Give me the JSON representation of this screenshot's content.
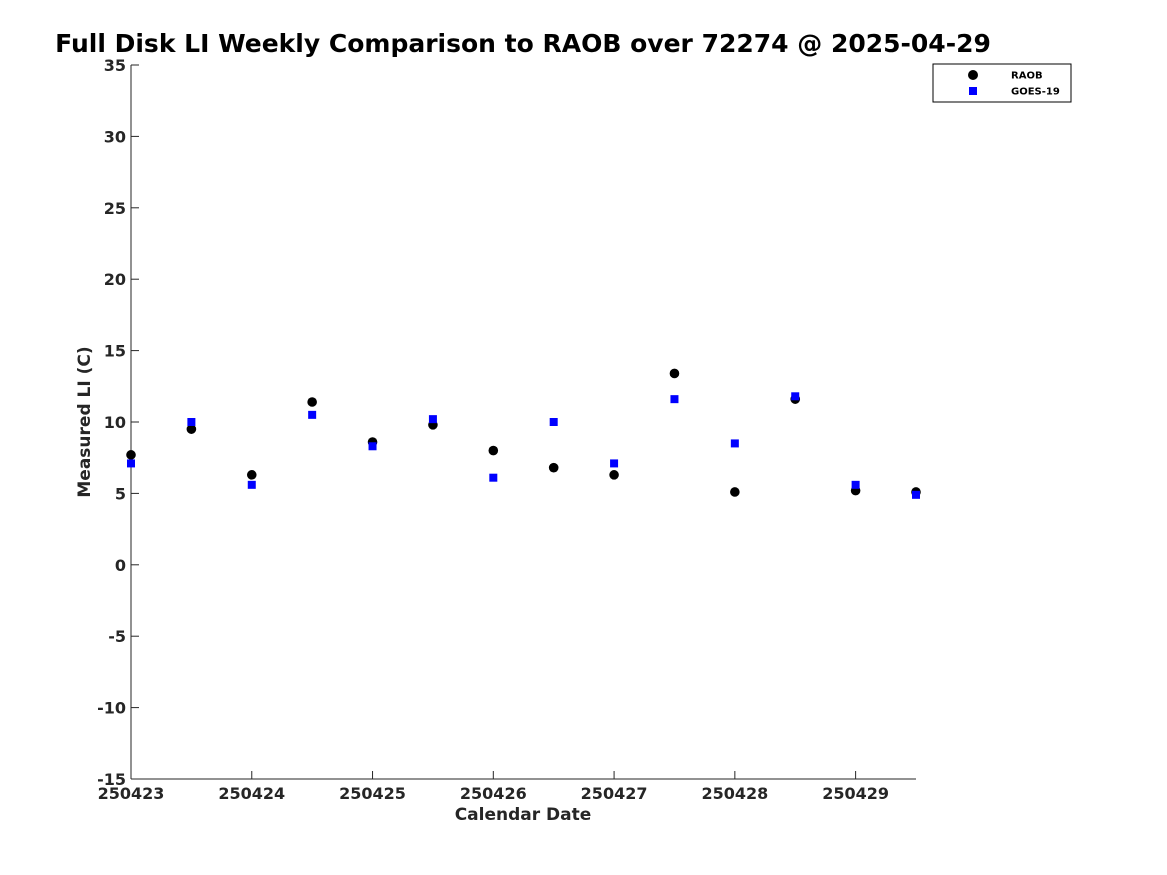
{
  "chart_data": {
    "type": "scatter",
    "title": "Full Disk LI Weekly Comparison to RAOB over 72274 @ 2025-04-29",
    "xlabel": "Calendar Date",
    "ylabel": "Measured LI (C)",
    "xlim": [
      0,
      6.5
    ],
    "ylim": [
      -15,
      35
    ],
    "x_ticks": [
      0,
      1,
      2,
      3,
      4,
      5,
      6
    ],
    "x_tick_labels": [
      "250423",
      "250424",
      "250425",
      "250426",
      "250427",
      "250428",
      "250429"
    ],
    "y_ticks": [
      -15,
      -10,
      -5,
      0,
      5,
      10,
      15,
      20,
      25,
      30,
      35
    ],
    "y_tick_labels": [
      "-15",
      "-10",
      "-5",
      "0",
      "5",
      "10",
      "15",
      "20",
      "25",
      "30",
      "35"
    ],
    "grid": false,
    "legend_position": "top-right",
    "x": [
      0,
      0.5,
      1,
      1.5,
      2,
      2.5,
      3,
      3.5,
      4,
      4.5,
      5,
      5.5,
      6,
      6.5
    ],
    "series": [
      {
        "name": "RAOB",
        "marker": "circle",
        "color": "#000000",
        "values": [
          7.7,
          9.5,
          6.3,
          11.4,
          8.6,
          9.8,
          8.0,
          6.8,
          6.3,
          13.4,
          5.1,
          11.6,
          5.2,
          5.1
        ]
      },
      {
        "name": "GOES-19",
        "marker": "square",
        "color": "#0000ff",
        "values": [
          7.1,
          10.0,
          5.6,
          10.5,
          8.3,
          10.2,
          6.1,
          10.0,
          7.1,
          11.6,
          8.5,
          11.8,
          5.6,
          4.9
        ]
      }
    ]
  }
}
